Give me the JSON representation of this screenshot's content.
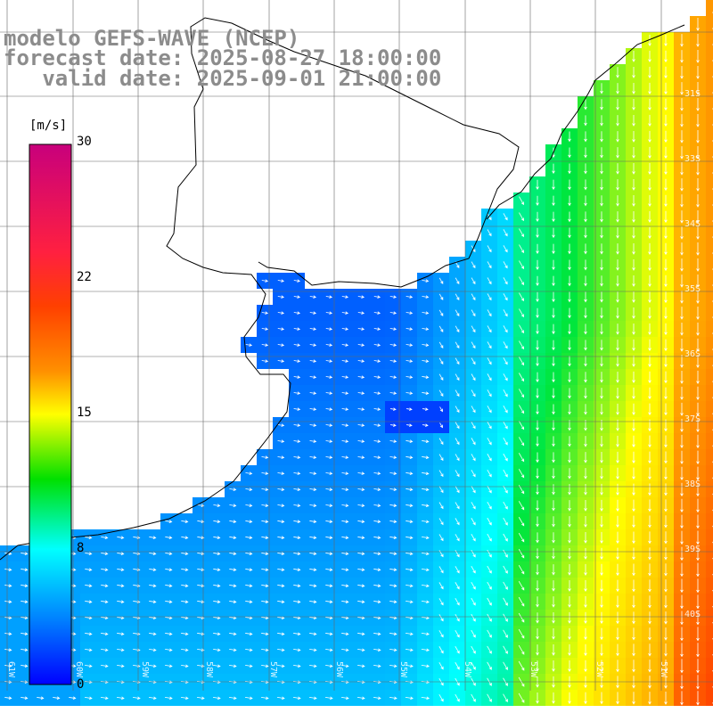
{
  "header": {
    "line1": "modelo GEFS-WAVE (NCEP)",
    "line2": "forecast date: 2025-08-27 18:00:00",
    "line3": "   valid date: 2025-09-01 21:00:00"
  },
  "colorbar": {
    "unit": "[m/s]",
    "ticks": [
      "30",
      "22",
      "15",
      "8",
      "0"
    ],
    "colors": [
      "#c8007c",
      "#ff0000",
      "#ff8000",
      "#ffff00",
      "#00e000",
      "#00ffff",
      "#0080ff",
      "#0000ff"
    ]
  },
  "lat_labels": [
    "31S",
    "33S",
    "34S",
    "35S",
    "36S",
    "37S",
    "38S",
    "39S",
    "40S"
  ],
  "lon_labels": [
    "61W",
    "60W",
    "59W",
    "58W",
    "57W",
    "56W",
    "55W",
    "54W",
    "53W",
    "52W",
    "51W"
  ],
  "colors": {
    "land": "#ffffff",
    "coast": "#000000",
    "grid": "#666666",
    "arrow": "#ffffff"
  }
}
